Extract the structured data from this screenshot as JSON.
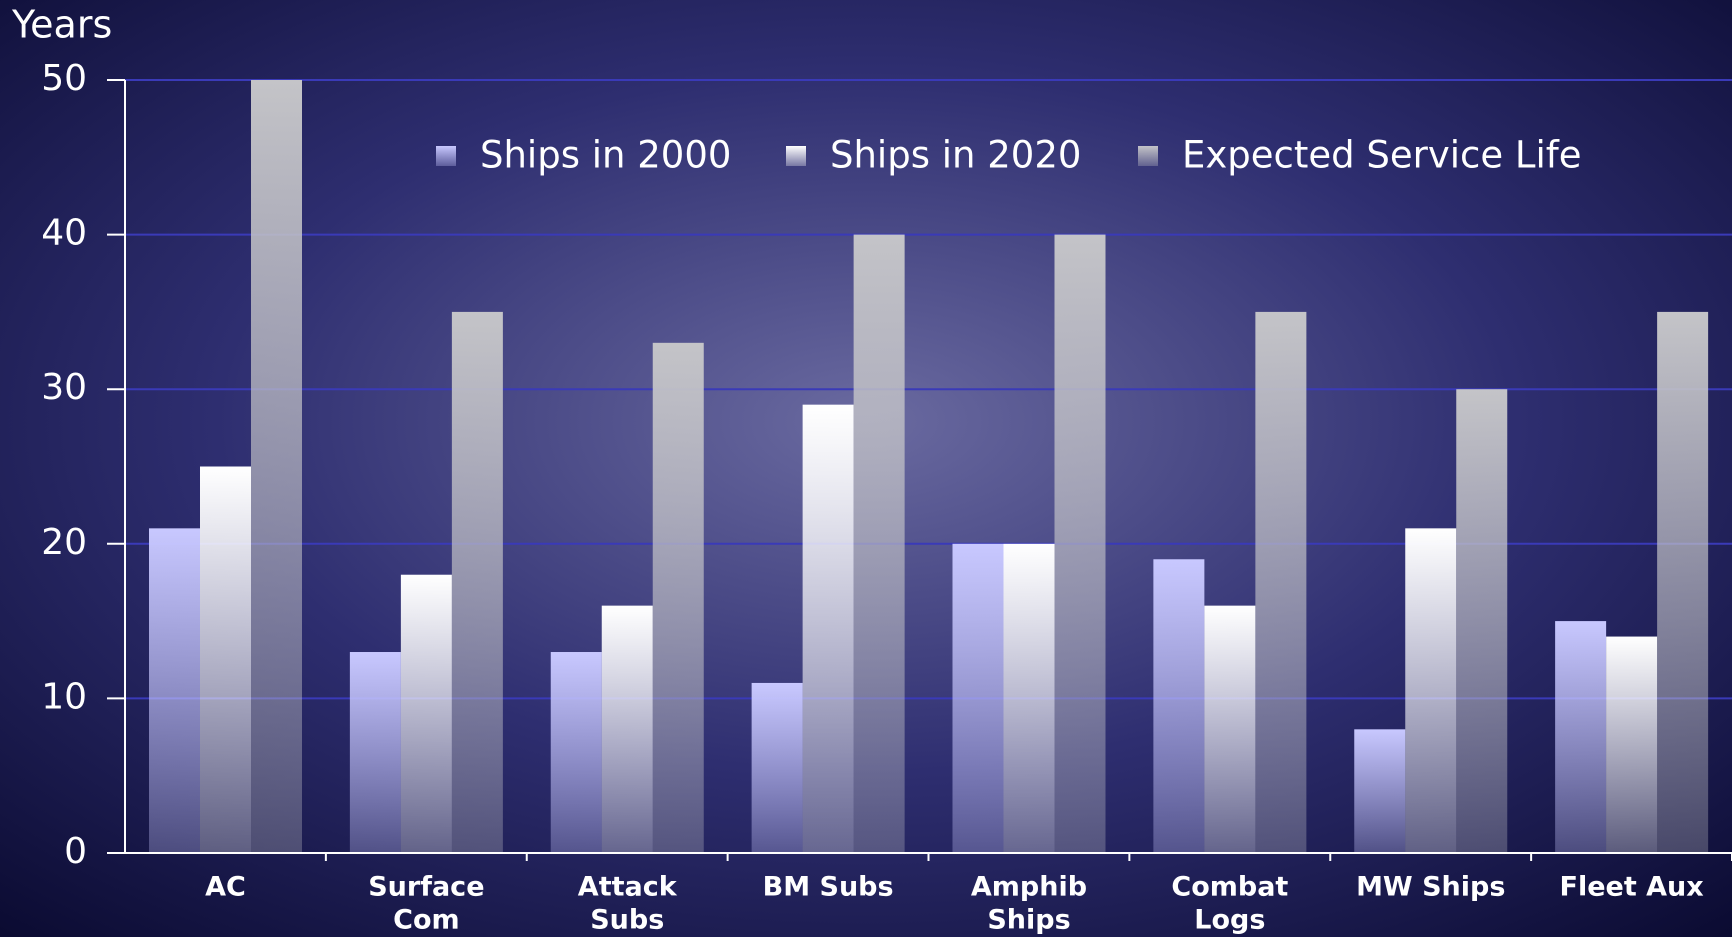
{
  "chart_data": {
    "type": "bar",
    "y_label": "Years",
    "categories": [
      [
        "AC"
      ],
      [
        "Surface",
        "Com"
      ],
      [
        "Attack",
        "Subs"
      ],
      [
        "BM Subs"
      ],
      [
        "Amphib",
        "Ships"
      ],
      [
        "Combat",
        "Logs"
      ],
      [
        "MW Ships"
      ],
      [
        "Fleet Aux"
      ]
    ],
    "series": [
      {
        "name": "Ships in 2000",
        "color": "#c8c8ff",
        "values": [
          21,
          13,
          13,
          11,
          20,
          19,
          8,
          15
        ]
      },
      {
        "name": "Ships in 2020",
        "color": "#ffffff",
        "values": [
          25,
          18,
          16,
          29,
          20,
          16,
          21,
          14
        ]
      },
      {
        "name": "Expected Service Life",
        "color": "#c4c4c8",
        "values": [
          50,
          35,
          33,
          40,
          40,
          35,
          30,
          35
        ]
      }
    ],
    "ylim": [
      0,
      50
    ],
    "yticks": [
      0,
      10,
      20,
      30,
      40,
      50
    ],
    "grid": true,
    "legend": "top"
  }
}
